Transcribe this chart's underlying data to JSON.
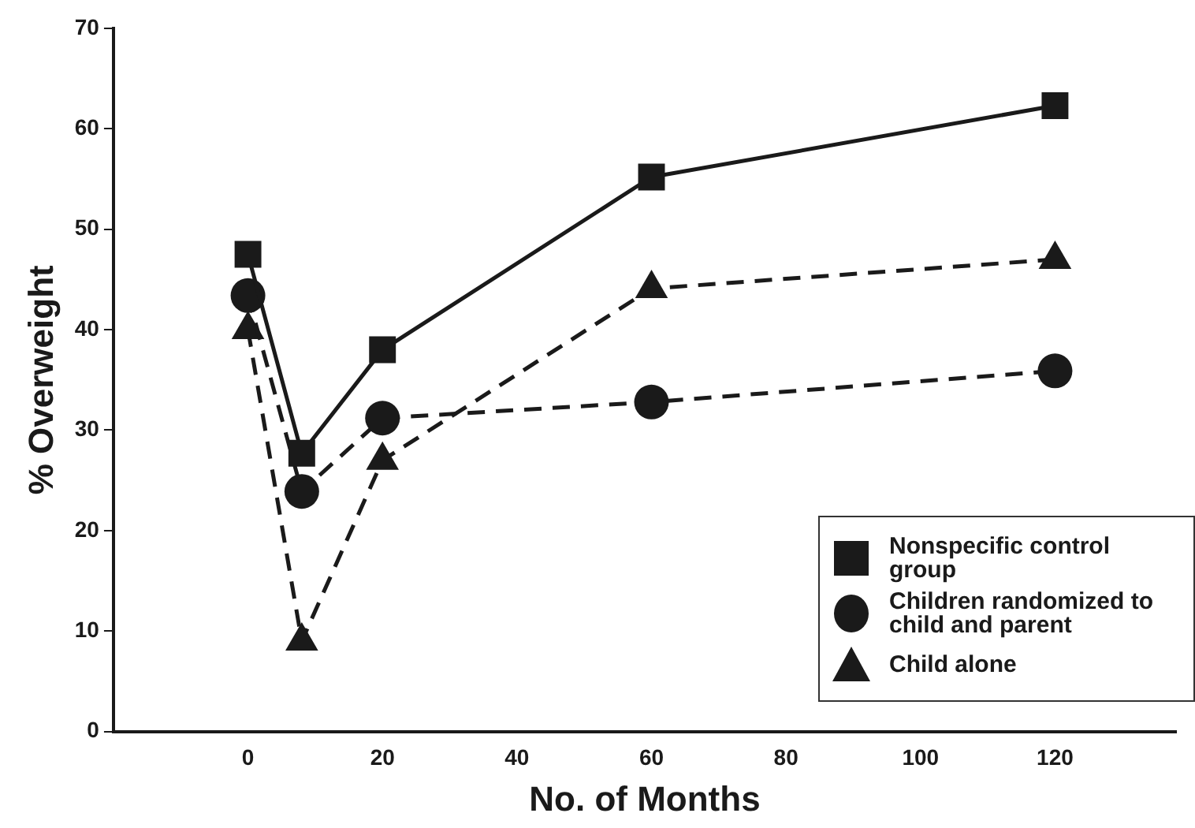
{
  "chart_data": {
    "type": "line",
    "xlabel": "No. of Months",
    "ylabel": "% Overweight",
    "xlim": [
      -20,
      138
    ],
    "xticks": [
      0,
      20,
      40,
      60,
      80,
      100,
      120
    ],
    "ylim": [
      0,
      70
    ],
    "yticks": [
      0,
      10,
      20,
      30,
      40,
      50,
      60,
      70
    ],
    "grid": false,
    "legend": "bottom right",
    "series": [
      {
        "name": "Nonspecific control group",
        "color": "#1a1a1a",
        "marker": "square",
        "line_style": "solid",
        "x": [
          0,
          8,
          20,
          60,
          120
        ],
        "values": [
          47.5,
          27.7,
          38,
          55.2,
          62.3
        ]
      },
      {
        "name": "Children randomized to child and parent",
        "color": "#1a1a1a",
        "marker": "circle",
        "line_style": "dashed",
        "x": [
          0,
          8,
          20,
          60,
          120
        ],
        "values": [
          43.4,
          23.9,
          31.2,
          32.8,
          35.9
        ]
      },
      {
        "name": "Child alone",
        "color": "#1a1a1a",
        "marker": "triangle",
        "line_style": "dashed",
        "x": [
          0,
          8,
          20,
          60,
          120
        ],
        "values": [
          40,
          9,
          27,
          44.1,
          47
        ]
      }
    ]
  }
}
